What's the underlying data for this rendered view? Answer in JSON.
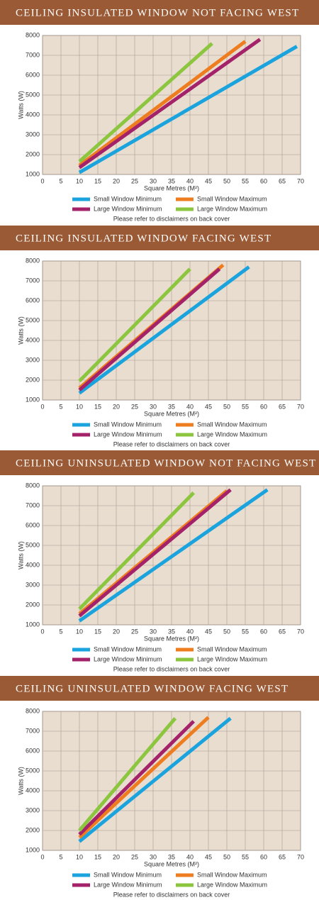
{
  "chart_data": [
    {
      "type": "line",
      "title": "CEILING INSULATED WINDOW NOT FACING WEST",
      "x_label": "Square Metres (M²)",
      "y_label": "Watts (W)",
      "note": "Please refer to disclaimers on back cover",
      "xlim": [
        0,
        70
      ],
      "ylim": [
        1000,
        8000
      ],
      "xticks": [
        0,
        5,
        10,
        15,
        20,
        25,
        30,
        35,
        40,
        45,
        50,
        55,
        60,
        65,
        70
      ],
      "yticks": [
        1000,
        2000,
        3000,
        4000,
        5000,
        6000,
        7000,
        8000
      ],
      "grid": true,
      "series": [
        {
          "name": "Small Window Minimum",
          "color": "#1aa3dc",
          "x": [
            10,
            69
          ],
          "values": [
            1100,
            7450
          ]
        },
        {
          "name": "Small Window Maximum",
          "color": "#ee7d1f",
          "x": [
            10,
            55
          ],
          "values": [
            1450,
            7700
          ]
        },
        {
          "name": "Large Window Minimum",
          "color": "#a3226a",
          "x": [
            10,
            59
          ],
          "values": [
            1350,
            7800
          ]
        },
        {
          "name": "Large Window Maximum",
          "color": "#8cc63f",
          "x": [
            10,
            46
          ],
          "values": [
            1650,
            7600
          ]
        }
      ]
    },
    {
      "type": "line",
      "title": "CEILING INSULATED WINDOW FACING WEST",
      "x_label": "Square Metres (M²)",
      "y_label": "Watts (W)",
      "note": "Please refer to disclaimers on back cover",
      "xlim": [
        0,
        70
      ],
      "ylim": [
        1000,
        8000
      ],
      "xticks": [
        0,
        5,
        10,
        15,
        20,
        25,
        30,
        35,
        40,
        45,
        50,
        55,
        60,
        65,
        70
      ],
      "yticks": [
        1000,
        2000,
        3000,
        4000,
        5000,
        6000,
        7000,
        8000
      ],
      "grid": true,
      "series": [
        {
          "name": "Small Window Minimum",
          "color": "#1aa3dc",
          "x": [
            10,
            56
          ],
          "values": [
            1350,
            7700
          ]
        },
        {
          "name": "Small Window Maximum",
          "color": "#ee7d1f",
          "x": [
            10,
            49
          ],
          "values": [
            1600,
            7800
          ]
        },
        {
          "name": "Large Window Minimum",
          "color": "#a3226a",
          "x": [
            10,
            48
          ],
          "values": [
            1500,
            7600
          ]
        },
        {
          "name": "Large Window Maximum",
          "color": "#8cc63f",
          "x": [
            10,
            40
          ],
          "values": [
            1950,
            7600
          ]
        }
      ]
    },
    {
      "type": "line",
      "title": "CEILING UNINSULATED WINDOW NOT FACING WEST",
      "x_label": "Square Metres (M²)",
      "y_label": "Watts (W)",
      "note": "Please refer to disclaimers on back cover",
      "xlim": [
        0,
        70
      ],
      "ylim": [
        1000,
        8000
      ],
      "xticks": [
        0,
        5,
        10,
        15,
        20,
        25,
        30,
        35,
        40,
        45,
        50,
        55,
        60,
        65,
        70
      ],
      "yticks": [
        1000,
        2000,
        3000,
        4000,
        5000,
        6000,
        7000,
        8000
      ],
      "grid": true,
      "series": [
        {
          "name": "Small Window Minimum",
          "color": "#1aa3dc",
          "x": [
            10,
            61
          ],
          "values": [
            1200,
            7800
          ]
        },
        {
          "name": "Small Window Maximum",
          "color": "#ee7d1f",
          "x": [
            10,
            50
          ],
          "values": [
            1550,
            7750
          ]
        },
        {
          "name": "Large Window Minimum",
          "color": "#a3226a",
          "x": [
            10,
            51
          ],
          "values": [
            1450,
            7800
          ]
        },
        {
          "name": "Large Window Maximum",
          "color": "#8cc63f",
          "x": [
            10,
            41
          ],
          "values": [
            1800,
            7650
          ]
        }
      ]
    },
    {
      "type": "line",
      "title": "CEILING UNINSULATED WINDOW FACING WEST",
      "x_label": "Square Metres (M²)",
      "y_label": "Watts (W)",
      "note": "Please refer to disclaimers on back cover",
      "xlim": [
        0,
        70
      ],
      "ylim": [
        1000,
        8000
      ],
      "xticks": [
        0,
        5,
        10,
        15,
        20,
        25,
        30,
        35,
        40,
        45,
        50,
        55,
        60,
        65,
        70
      ],
      "yticks": [
        1000,
        2000,
        3000,
        4000,
        5000,
        6000,
        7000,
        8000
      ],
      "grid": true,
      "series": [
        {
          "name": "Small Window Minimum",
          "color": "#1aa3dc",
          "x": [
            10,
            51
          ],
          "values": [
            1450,
            7650
          ]
        },
        {
          "name": "Small Window Maximum",
          "color": "#ee7d1f",
          "x": [
            10,
            45
          ],
          "values": [
            1650,
            7700
          ]
        },
        {
          "name": "Large Window Minimum",
          "color": "#a3226a",
          "x": [
            10,
            41
          ],
          "values": [
            1800,
            7500
          ]
        },
        {
          "name": "Large Window Maximum",
          "color": "#8cc63f",
          "x": [
            10,
            36
          ],
          "values": [
            2000,
            7650
          ]
        }
      ]
    }
  ]
}
